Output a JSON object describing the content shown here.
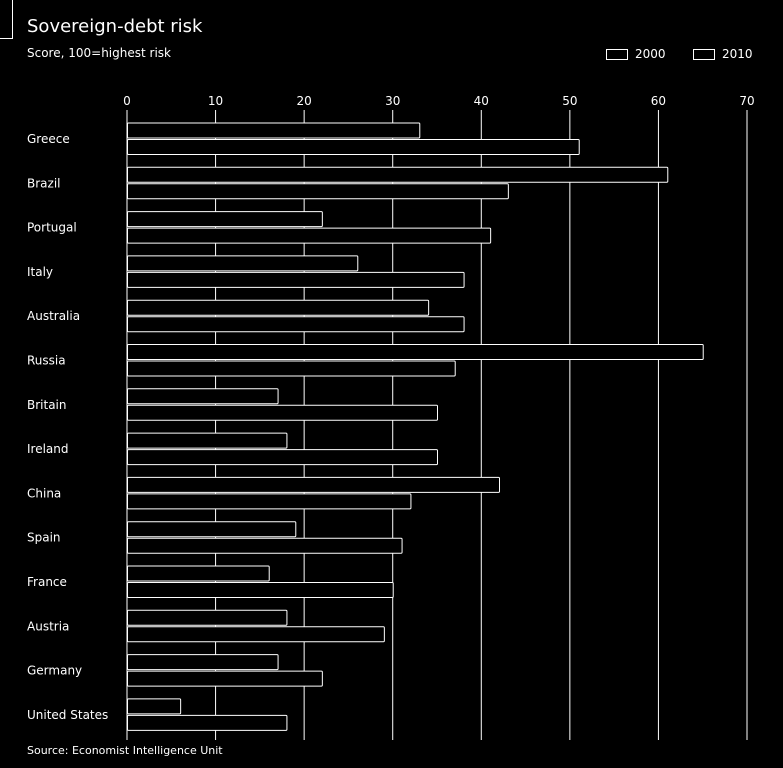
{
  "title": "Sovereign-debt risk",
  "subtitle": "Score, 100=highest risk",
  "source": "Source: Economist Intelligence Unit",
  "chart_data": {
    "type": "bar",
    "orientation": "horizontal",
    "title": "Sovereign-debt risk",
    "subtitle": "Score, 100=highest risk",
    "categories": [
      "Greece",
      "Brazil",
      "Portugal",
      "Italy",
      "Australia",
      "Russia",
      "Britain",
      "Ireland",
      "China",
      "Spain",
      "France",
      "Austria",
      "Germany",
      "United States"
    ],
    "series": [
      {
        "name": "2000",
        "values": [
          33,
          61,
          22,
          26,
          34,
          65,
          17,
          18,
          42,
          19,
          16,
          18,
          17,
          6
        ]
      },
      {
        "name": "2010",
        "values": [
          51,
          43,
          41,
          38,
          38,
          37,
          35,
          35,
          32,
          31,
          30,
          29,
          22,
          18
        ]
      }
    ],
    "xlim": [
      0,
      70
    ],
    "xticks": [
      0,
      10,
      20,
      30,
      40,
      50,
      60,
      70
    ],
    "grid": true,
    "legend_position": "top-right"
  }
}
